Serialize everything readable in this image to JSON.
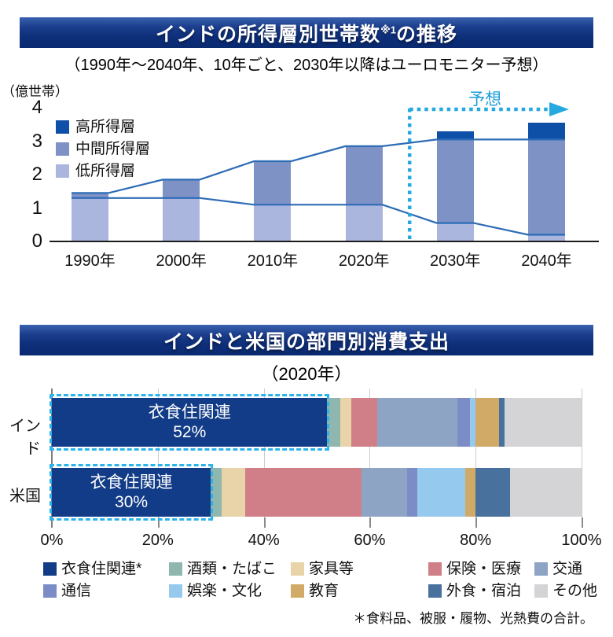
{
  "banner1": {
    "title_main": "インドの所得層別世帯数",
    "title_sup": "※1",
    "title_tail": "の推移"
  },
  "banner2": {
    "title": "インドと米国の部門別消費支出"
  },
  "chart_data": [
    {
      "type": "bar",
      "stacked": true,
      "title": "インドの所得層別世帯数※1の推移",
      "subtitle": "（1990年～2040年、10年ごと、2030年以降はユーロモニター予想）",
      "unit_label": "（億世帯）",
      "categories": [
        "1990年",
        "2000年",
        "2010年",
        "2020年",
        "2030年",
        "2040年"
      ],
      "series": [
        {
          "name": "低所得層",
          "color": "#abb6de",
          "values": [
            1.3,
            1.3,
            1.1,
            1.1,
            0.55,
            0.2
          ]
        },
        {
          "name": "中間所得層",
          "color": "#7e92c6",
          "values": [
            0.15,
            0.55,
            1.3,
            1.75,
            2.5,
            2.85
          ]
        },
        {
          "name": "高所得層",
          "color": "#0e4fa8",
          "values": [
            0,
            0,
            0,
            0,
            0.25,
            0.5
          ]
        }
      ],
      "totals": [
        1.45,
        1.85,
        2.4,
        2.85,
        3.3,
        3.55
      ],
      "legend": [
        {
          "label": "高所得層",
          "color": "#0e4fa8"
        },
        {
          "label": "中間所得層",
          "color": "#7e92c6"
        },
        {
          "label": "低所得層",
          "color": "#abb6de"
        }
      ],
      "ylim": [
        0,
        4
      ],
      "yticks": [
        4,
        3,
        2,
        1,
        0
      ],
      "grid": false,
      "legend_position": "upper-left",
      "line_color": "#2d6cb6",
      "boundary_lines": [
        "低所得層上端",
        "低所得層+中間所得層上端"
      ],
      "forecast": {
        "label": "予想",
        "color": "#25a9e0",
        "starts_after_index": 3
      }
    },
    {
      "type": "bar",
      "orientation": "horizontal",
      "stacked": true,
      "title": "インドと米国の部門別消費支出",
      "subtitle": "（2020年）",
      "categories": [
        "衣食住関連*",
        "酒類・たばこ",
        "家具等",
        "保険・医療",
        "交通",
        "通信",
        "娯楽・文化",
        "教育",
        "外食・宿泊",
        "その他"
      ],
      "colors": [
        "#123c87",
        "#8fb7b0",
        "#e8d4a8",
        "#d07f88",
        "#8da4c4",
        "#7c8cc6",
        "#95c9ed",
        "#d2aa68",
        "#48719d",
        "#d4d4d6"
      ],
      "rows": [
        {
          "name": "インド",
          "values": [
            52,
            2.5,
            2,
            5,
            15,
            2.5,
            1,
            4.5,
            1,
            14.5
          ],
          "highlight": {
            "label": "衣食住関連",
            "pct": "52%"
          }
        },
        {
          "name": "米国",
          "values": [
            30,
            2,
            4.5,
            22,
            8.5,
            2,
            9,
            2,
            6.5,
            13.5
          ],
          "highlight": {
            "label": "衣食住関連",
            "pct": "30%"
          }
        }
      ],
      "xlim": [
        0,
        100
      ],
      "xticks": [
        "0%",
        "20%",
        "40%",
        "60%",
        "80%",
        "100%"
      ],
      "grid": true,
      "highlight_border_color": "#2bb3ea",
      "legend_position": "bottom",
      "footnote": "＊食料品、被服・履物、光熱費の合計。"
    }
  ]
}
